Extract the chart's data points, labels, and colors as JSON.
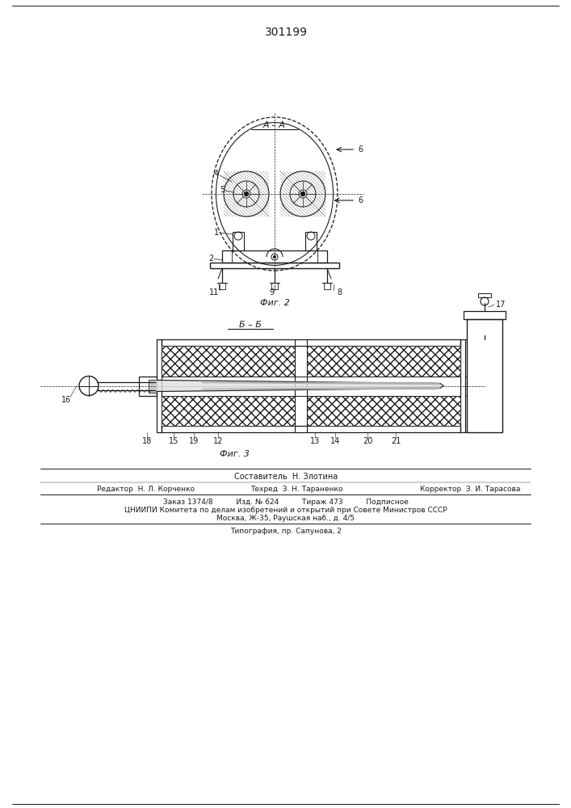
{
  "patent_number": "301199",
  "fig2_label": "А – А",
  "fig3_label": "Б – Б",
  "fig2_caption": "Фиг. 2",
  "fig3_caption": "Фиг. 3",
  "author_line": "Составитель  Н. Злотина",
  "editor_line": "Редактор  Н. Л. Корченко",
  "tech_line": "Техред  З. Н. Тараненко",
  "corrector_line": "Корректор  З. И. Тарасова",
  "order_line": "Заказ 1374/8          Изд. № 624          Тираж 473          Подписное",
  "org_line": "ЦНИИПИ Комитета по делам изобретений и открытий при Совете Министров СССР",
  "addr_line": "Москва, Ж-35, Раушская наб., д. 4/5",
  "print_line": "Типография, пр. Сапунова, 2",
  "bg_color": "#ffffff",
  "line_color": "#1a1a1a"
}
